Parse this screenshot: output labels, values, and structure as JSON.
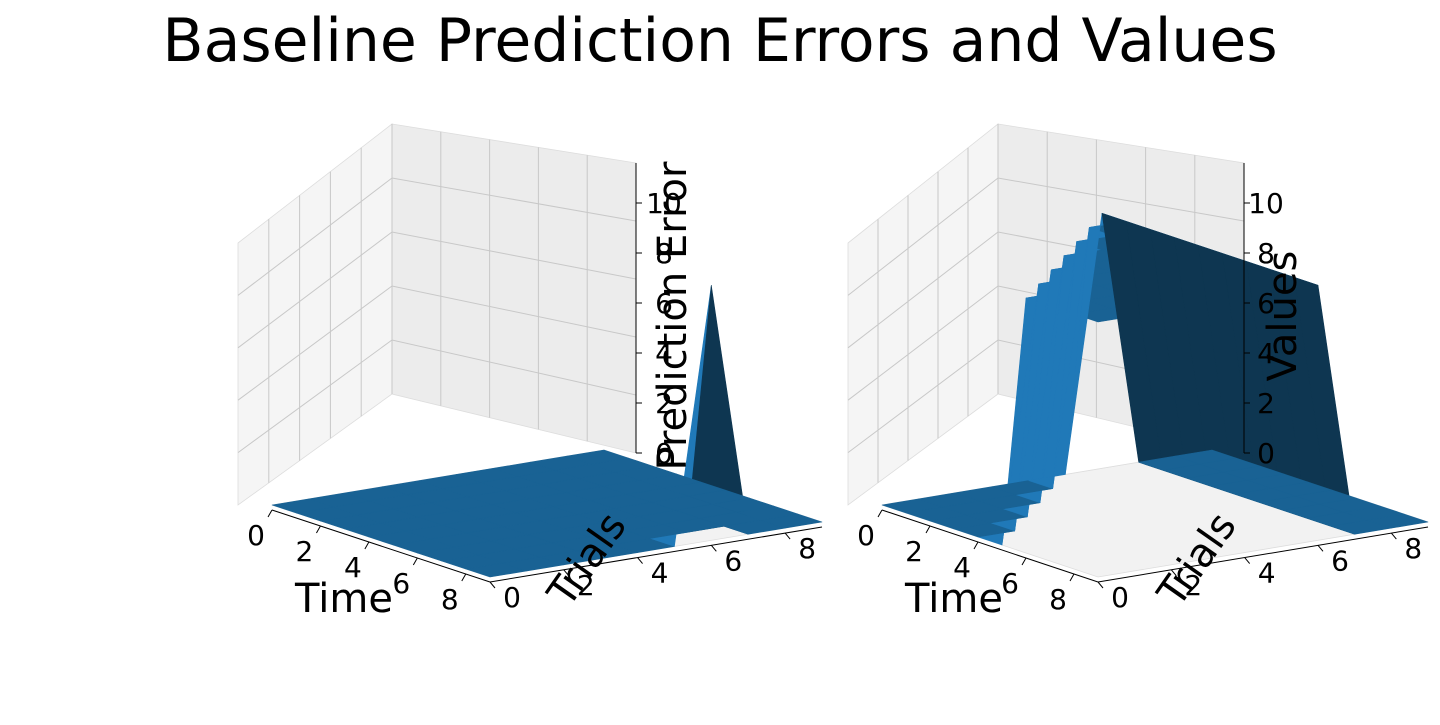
{
  "figure": {
    "title": "Baseline Prediction Errors and Values"
  },
  "chart_data": [
    {
      "type": "surface3d",
      "xlabel": "Time",
      "ylabel": "Trials",
      "zlabel": "Prediction Error",
      "xlim": [
        0,
        9
      ],
      "ylim": [
        0,
        9
      ],
      "zlim": [
        0,
        10
      ],
      "xticks": [
        0,
        2,
        4,
        6,
        8
      ],
      "yticks": [
        0,
        2,
        4,
        6,
        8
      ],
      "zticks": [
        0,
        2,
        4,
        6,
        8,
        10
      ],
      "x": [
        0,
        1,
        2,
        3,
        4,
        5,
        6,
        7,
        8,
        9
      ],
      "y": [
        0,
        1,
        2,
        3,
        4,
        5,
        6,
        7,
        8,
        9
      ],
      "z": [
        [
          0,
          0,
          0,
          0,
          0,
          0,
          0,
          0,
          0,
          0
        ],
        [
          0,
          0,
          0,
          0,
          0,
          0,
          0,
          0,
          0,
          0
        ],
        [
          0,
          0,
          0,
          0,
          0,
          0,
          0,
          0,
          0,
          0
        ],
        [
          0,
          0,
          0,
          0,
          0,
          0,
          0,
          0,
          0,
          0
        ],
        [
          0,
          0,
          0,
          0,
          0,
          0,
          0,
          0,
          0,
          0
        ],
        [
          0,
          0,
          0,
          0,
          0,
          0,
          0,
          0,
          0,
          0
        ],
        [
          0,
          0,
          0,
          0,
          0,
          0,
          0,
          0,
          0,
          0
        ],
        [
          0,
          0,
          0,
          0,
          0,
          0,
          0,
          0,
          0,
          0
        ],
        [
          0,
          0,
          0,
          0,
          0,
          0,
          0,
          0,
          0,
          0
        ],
        [
          0,
          0,
          0,
          0,
          0,
          0,
          10,
          0,
          0,
          0
        ]
      ],
      "grid": true,
      "color": "#1f77b4"
    },
    {
      "type": "surface3d",
      "xlabel": "Time",
      "ylabel": "Trials",
      "zlabel": "Values",
      "xlim": [
        0,
        9
      ],
      "ylim": [
        0,
        9
      ],
      "zlim": [
        0,
        10
      ],
      "xticks": [
        0,
        2,
        4,
        6,
        8
      ],
      "yticks": [
        0,
        2,
        4,
        6,
        8
      ],
      "zticks": [
        0,
        2,
        4,
        6,
        8,
        10
      ],
      "x": [
        0,
        1,
        2,
        3,
        4,
        5,
        6,
        7,
        8,
        9
      ],
      "y": [
        0,
        1,
        2,
        3,
        4,
        5,
        6,
        7,
        8,
        9
      ],
      "z": [
        [
          0,
          0,
          0,
          0,
          0,
          0,
          10,
          0,
          0,
          0
        ],
        [
          0,
          0,
          0,
          0,
          0,
          10,
          10,
          0,
          0,
          0
        ],
        [
          0,
          0,
          0,
          0,
          10,
          10,
          10,
          0,
          0,
          0
        ],
        [
          0,
          0,
          0,
          10,
          10,
          10,
          10,
          0,
          0,
          0
        ],
        [
          0,
          0,
          10,
          10,
          10,
          10,
          10,
          0,
          0,
          0
        ],
        [
          0,
          10,
          10,
          10,
          10,
          10,
          10,
          0,
          0,
          0
        ],
        [
          10,
          10,
          10,
          10,
          10,
          10,
          10,
          0,
          0,
          0
        ],
        [
          10,
          10,
          10,
          10,
          10,
          10,
          10,
          0,
          0,
          0
        ],
        [
          10,
          10,
          10,
          10,
          10,
          10,
          10,
          0,
          0,
          0
        ],
        [
          10,
          10,
          10,
          10,
          10,
          10,
          10,
          0,
          0,
          0
        ]
      ],
      "grid": true,
      "color": "#1f77b4"
    }
  ]
}
